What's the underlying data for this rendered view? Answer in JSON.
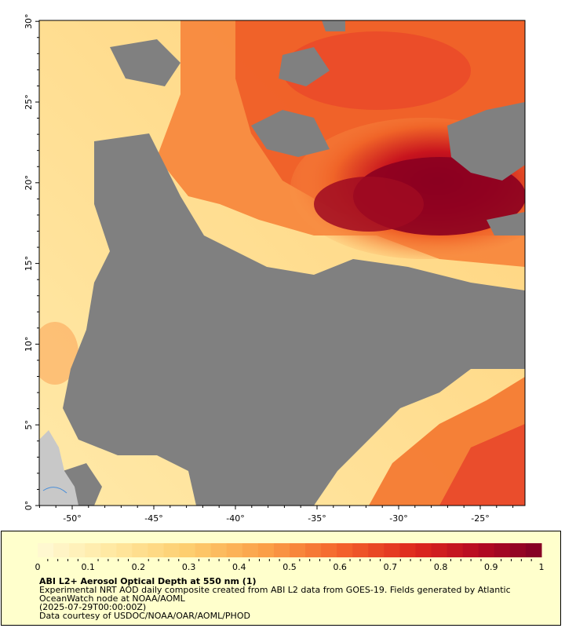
{
  "map": {
    "lat_ticks": [
      "0°",
      "5°",
      "10°",
      "15°",
      "20°",
      "25°",
      "30°"
    ],
    "lon_ticks": [
      "-50°",
      "-45°",
      "-40°",
      "-35°",
      "-30°",
      "-25°"
    ],
    "colors": {
      "no_data": "#808080",
      "land": "#c8c8c8",
      "low": "#fff0b8",
      "mid": "#f87a2a",
      "high": "#8b0020"
    }
  },
  "legend": {
    "ticks": [
      "0",
      "0.1",
      "0.2",
      "0.3",
      "0.4",
      "0.5",
      "0.6",
      "0.7",
      "0.8",
      "0.9",
      "1"
    ],
    "title": "ABI L2+ Aerosol Optical Depth at 550 nm (1)",
    "description": "Experimental NRT AOD daily composite created from ABI L2 data from GOES-19. Fields generated by Atlantic OceanWatch node at NOAA/AOML",
    "date": "(2025-07-29T00:00:00Z)",
    "credit": "Data courtesy of USDOC/NOAA/OAR/AOML/PHOD"
  }
}
